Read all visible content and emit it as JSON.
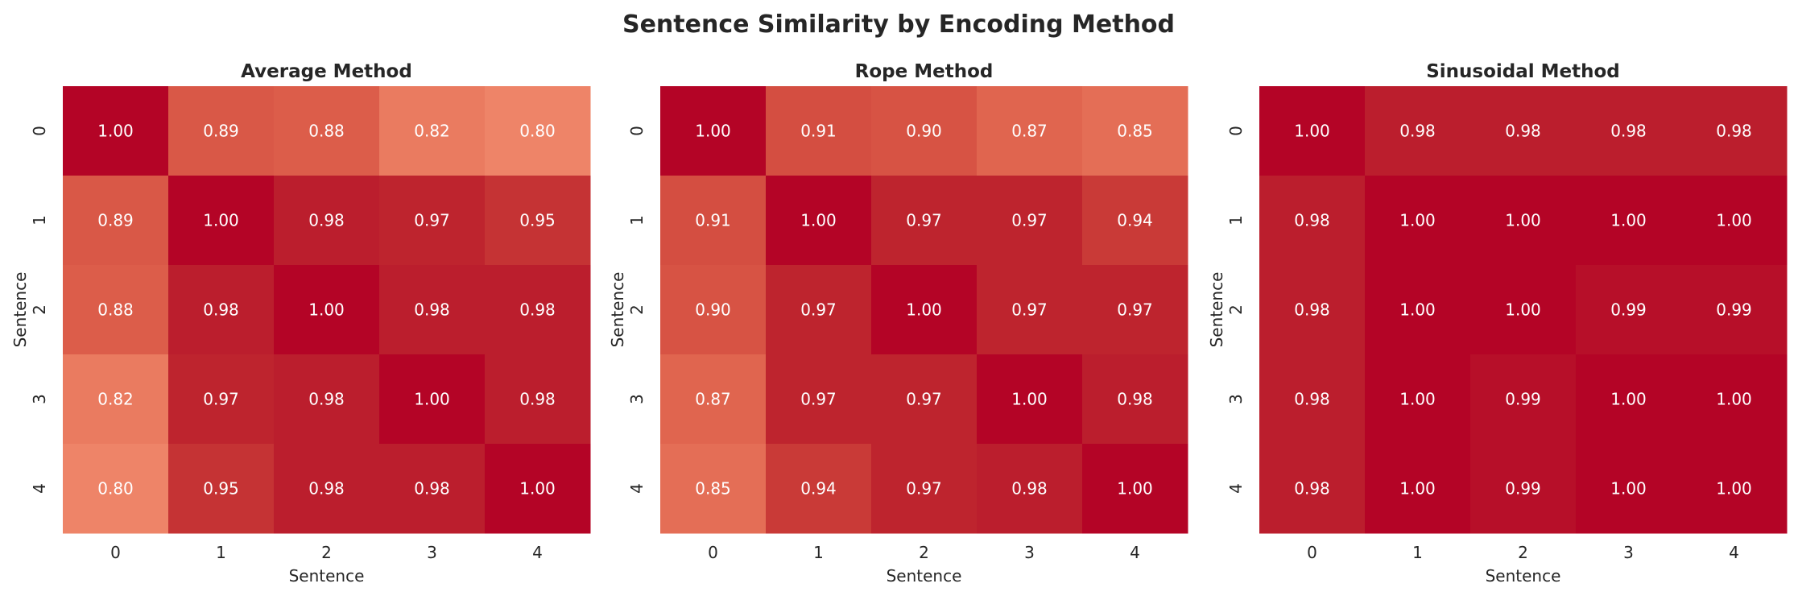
{
  "chart_data": {
    "type": "heatmap",
    "title": "Sentence Similarity by Encoding Method",
    "colormap": {
      "stops": [
        {
          "value": 0.8,
          "color": "#ee8468"
        },
        {
          "value": 0.82,
          "color": "#ea7b60"
        },
        {
          "value": 0.85,
          "color": "#e46e56"
        },
        {
          "value": 0.87,
          "color": "#e0654f"
        },
        {
          "value": 0.88,
          "color": "#dc5d4a"
        },
        {
          "value": 0.89,
          "color": "#d95847"
        },
        {
          "value": 0.91,
          "color": "#d44e41"
        },
        {
          "value": 0.94,
          "color": "#c93a37"
        },
        {
          "value": 0.95,
          "color": "#c53334"
        },
        {
          "value": 0.97,
          "color": "#be242e"
        },
        {
          "value": 0.98,
          "color": "#bb1e2d"
        },
        {
          "value": 0.99,
          "color": "#b70f29"
        },
        {
          "value": 1.0,
          "color": "#b40426"
        }
      ],
      "annotation_color": "#ffffff",
      "colorbar": false
    },
    "panels": [
      {
        "title": "Average Method",
        "xlabel": "Sentence",
        "ylabel": "Sentence",
        "x_ticks": [
          "0",
          "1",
          "2",
          "3",
          "4"
        ],
        "y_ticks": [
          "0",
          "1",
          "2",
          "3",
          "4"
        ],
        "values": [
          [
            1.0,
            0.89,
            0.88,
            0.82,
            0.8
          ],
          [
            0.89,
            1.0,
            0.98,
            0.97,
            0.95
          ],
          [
            0.88,
            0.98,
            1.0,
            0.98,
            0.98
          ],
          [
            0.82,
            0.97,
            0.98,
            1.0,
            0.98
          ],
          [
            0.8,
            0.95,
            0.98,
            0.98,
            1.0
          ]
        ]
      },
      {
        "title": "Rope Method",
        "xlabel": "Sentence",
        "ylabel": "Sentence",
        "x_ticks": [
          "0",
          "1",
          "2",
          "3",
          "4"
        ],
        "y_ticks": [
          "0",
          "1",
          "2",
          "3",
          "4"
        ],
        "values": [
          [
            1.0,
            0.91,
            0.9,
            0.87,
            0.85
          ],
          [
            0.91,
            1.0,
            0.97,
            0.97,
            0.94
          ],
          [
            0.9,
            0.97,
            1.0,
            0.97,
            0.97
          ],
          [
            0.87,
            0.97,
            0.97,
            1.0,
            0.98
          ],
          [
            0.85,
            0.94,
            0.97,
            0.98,
            1.0
          ]
        ]
      },
      {
        "title": "Sinusoidal Method",
        "xlabel": "Sentence",
        "ylabel": "Sentence",
        "x_ticks": [
          "0",
          "1",
          "2",
          "3",
          "4"
        ],
        "y_ticks": [
          "0",
          "1",
          "2",
          "3",
          "4"
        ],
        "values": [
          [
            1.0,
            0.98,
            0.98,
            0.98,
            0.98
          ],
          [
            0.98,
            1.0,
            1.0,
            1.0,
            1.0
          ],
          [
            0.98,
            1.0,
            1.0,
            0.99,
            0.99
          ],
          [
            0.98,
            1.0,
            0.99,
            1.0,
            1.0
          ],
          [
            0.98,
            1.0,
            0.99,
            1.0,
            1.0
          ]
        ]
      }
    ]
  }
}
